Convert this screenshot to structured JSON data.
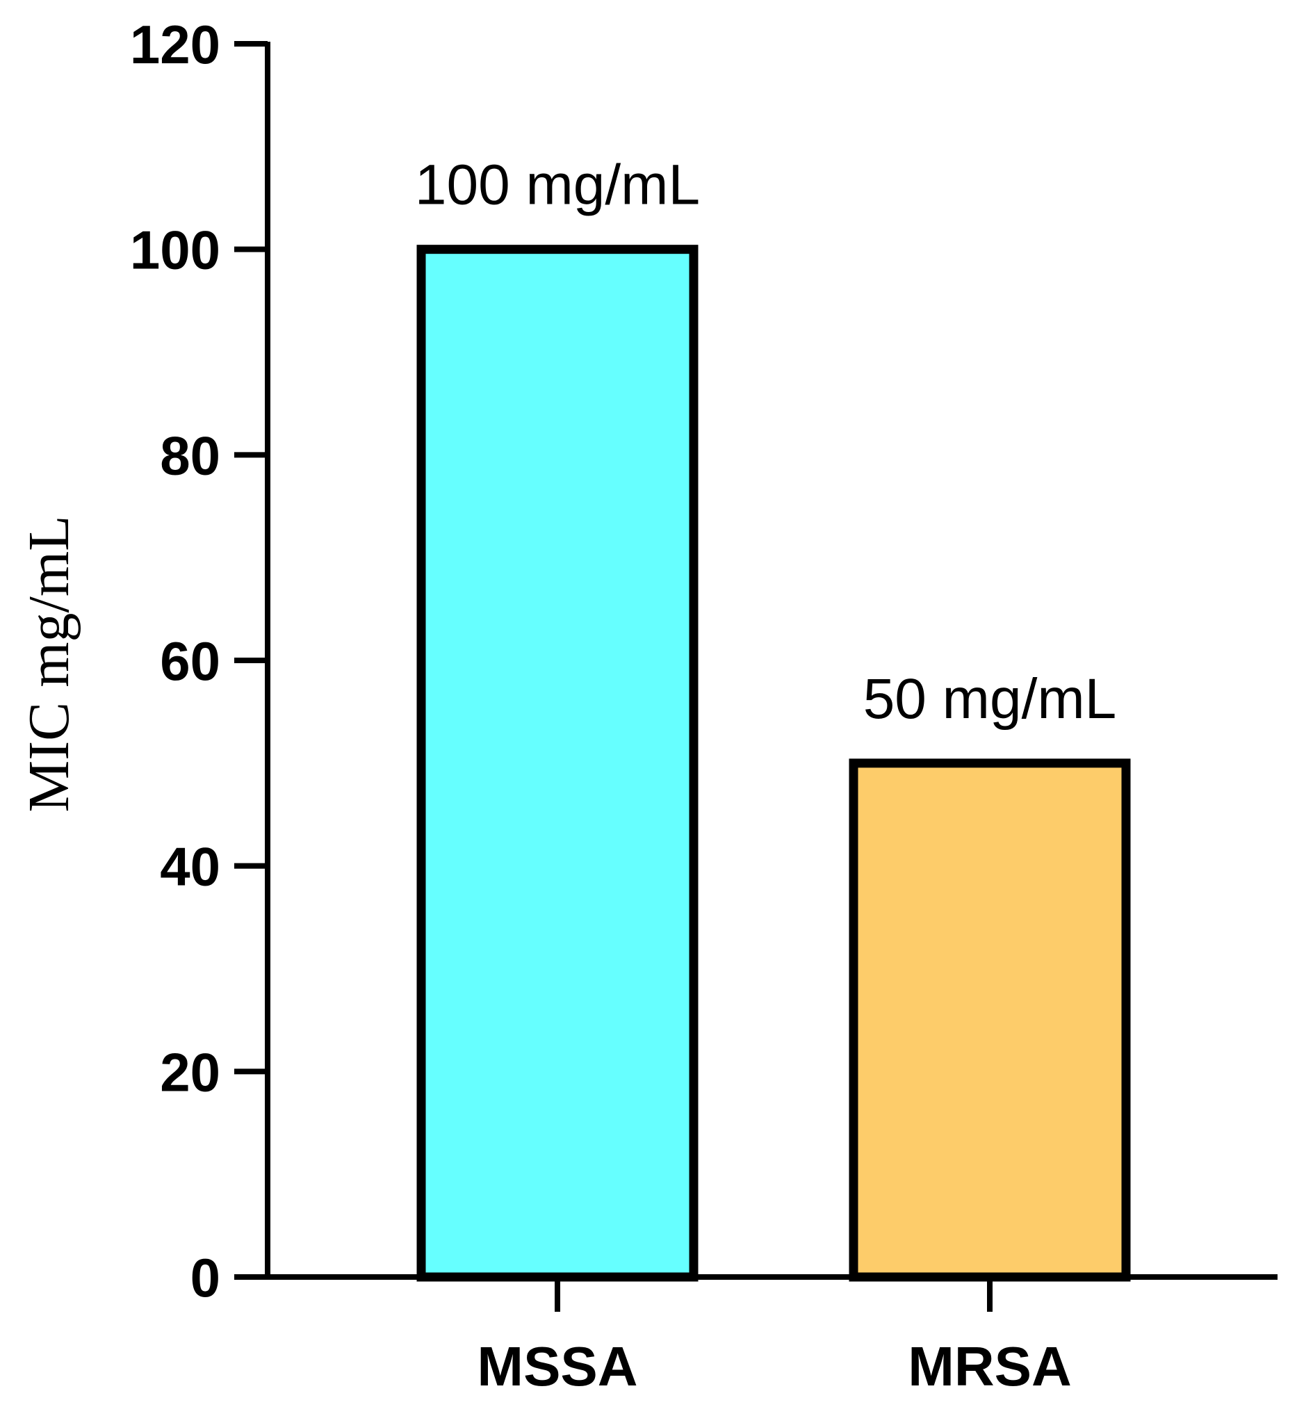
{
  "chart_data": {
    "type": "bar",
    "title": "",
    "xlabel": "",
    "ylabel": "MIC mg/mL",
    "ylim": [
      0,
      120
    ],
    "yticks": [
      "0",
      "20",
      "40",
      "60",
      "80",
      "100",
      "120"
    ],
    "categories": [
      "MSSA",
      "MRSA"
    ],
    "values": [
      100,
      50
    ],
    "data_labels": [
      "100 mg/mL",
      "50 mg/mL"
    ],
    "bar_colors": [
      "#66FFFF",
      "#FDCC6A"
    ],
    "edge_color": "#000000",
    "grid": false,
    "legend": "none"
  }
}
